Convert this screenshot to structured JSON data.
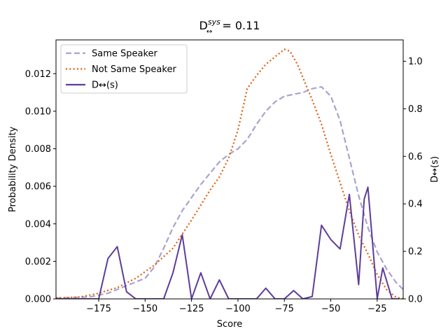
{
  "chart_data": {
    "type": "line",
    "title": {
      "base": "D",
      "sup": "sys",
      "sub": "↔",
      "rest": " = 0.11"
    },
    "xlabel": "Score",
    "ylabel_left": "Probability Density",
    "ylabel_right": "D↔(s)",
    "xlim": [
      -198,
      -11
    ],
    "ylim_left": [
      0,
      0.0138
    ],
    "ylim_right": [
      0,
      1.09
    ],
    "xticks": [
      -175,
      -150,
      -125,
      -100,
      -75,
      -50,
      -25
    ],
    "xtick_labels": [
      "−175",
      "−150",
      "−125",
      "−100",
      "−75",
      "−50",
      "−25"
    ],
    "yticks_left": [
      0,
      0.002,
      0.004,
      0.006,
      0.008,
      0.01,
      0.012
    ],
    "ytick_labels_left": [
      "0.000",
      "0.002",
      "0.004",
      "0.006",
      "0.008",
      "0.010",
      "0.012"
    ],
    "yticks_right": [
      0,
      0.2,
      0.4,
      0.6,
      0.8,
      1.0
    ],
    "ytick_labels_right": [
      "0.0",
      "0.2",
      "0.4",
      "0.6",
      "0.8",
      "1.0"
    ],
    "legend_position": "top-left",
    "series": [
      {
        "name": "Same Speaker",
        "axis": "left",
        "color": "#a8a4cf",
        "style": "dashed",
        "x": [
          -198,
          -180,
          -170,
          -160,
          -150,
          -145,
          -140,
          -135,
          -130,
          -125,
          -120,
          -115,
          -110,
          -105,
          -100,
          -95,
          -90,
          -85,
          -80,
          -75,
          -70,
          -65,
          -60,
          -55,
          -50,
          -45,
          -40,
          -35,
          -30,
          -25,
          -20,
          -15,
          -11
        ],
        "y": [
          5e-05,
          0.0001,
          0.0003,
          0.0007,
          0.0011,
          0.0017,
          0.0027,
          0.0038,
          0.0047,
          0.0054,
          0.0061,
          0.0067,
          0.0073,
          0.0077,
          0.008,
          0.0085,
          0.0093,
          0.01,
          0.0105,
          0.0108,
          0.0109,
          0.011,
          0.0112,
          0.0113,
          0.0108,
          0.0095,
          0.0075,
          0.0055,
          0.0038,
          0.0025,
          0.0016,
          0.0009,
          0.0005
        ]
      },
      {
        "name": "Not Same Speaker",
        "axis": "left",
        "color": "#e05c0c",
        "style": "dotted",
        "x": [
          -198,
          -185,
          -175,
          -165,
          -155,
          -145,
          -135,
          -125,
          -115,
          -110,
          -105,
          -100,
          -95,
          -90,
          -85,
          -80,
          -75,
          -72,
          -68,
          -60,
          -55,
          -50,
          -45,
          -40,
          -35,
          -30,
          -25,
          -20,
          -15,
          -11
        ],
        "y": [
          5e-05,
          0.0001,
          0.0003,
          0.0006,
          0.0011,
          0.0018,
          0.0027,
          0.0042,
          0.0058,
          0.0065,
          0.0075,
          0.009,
          0.0112,
          0.0119,
          0.0125,
          0.0129,
          0.0133,
          0.0132,
          0.0125,
          0.0106,
          0.0093,
          0.0077,
          0.0062,
          0.0047,
          0.0034,
          0.0024,
          0.0013,
          0.0005,
          0.0001,
          0.0
        ]
      },
      {
        "name": "D↔(s)",
        "axis": "right",
        "color": "#5e3c99",
        "style": "solid",
        "x": [
          -198,
          -175,
          -170,
          -165,
          -160,
          -155,
          -150,
          -145,
          -140,
          -135,
          -130,
          -125,
          -120,
          -115,
          -110,
          -105,
          -100,
          -95,
          -90,
          -85,
          -80,
          -75,
          -70,
          -65,
          -60,
          -55,
          -50,
          -45,
          -40,
          -35,
          -32,
          -30,
          -25,
          -22,
          -17,
          -13
        ],
        "y": [
          0.0,
          0.0,
          0.17,
          0.22,
          0.03,
          0.0,
          0.0,
          0.0,
          0.0,
          0.11,
          0.27,
          0.0,
          0.11,
          0.0,
          0.08,
          0.0,
          0.0,
          0.0,
          0.0,
          0.045,
          0.0,
          0.0,
          0.035,
          0.0,
          0.01,
          0.31,
          0.25,
          0.21,
          0.44,
          0.06,
          0.42,
          0.47,
          0.0,
          0.13,
          0.0,
          0.0
        ]
      }
    ]
  }
}
